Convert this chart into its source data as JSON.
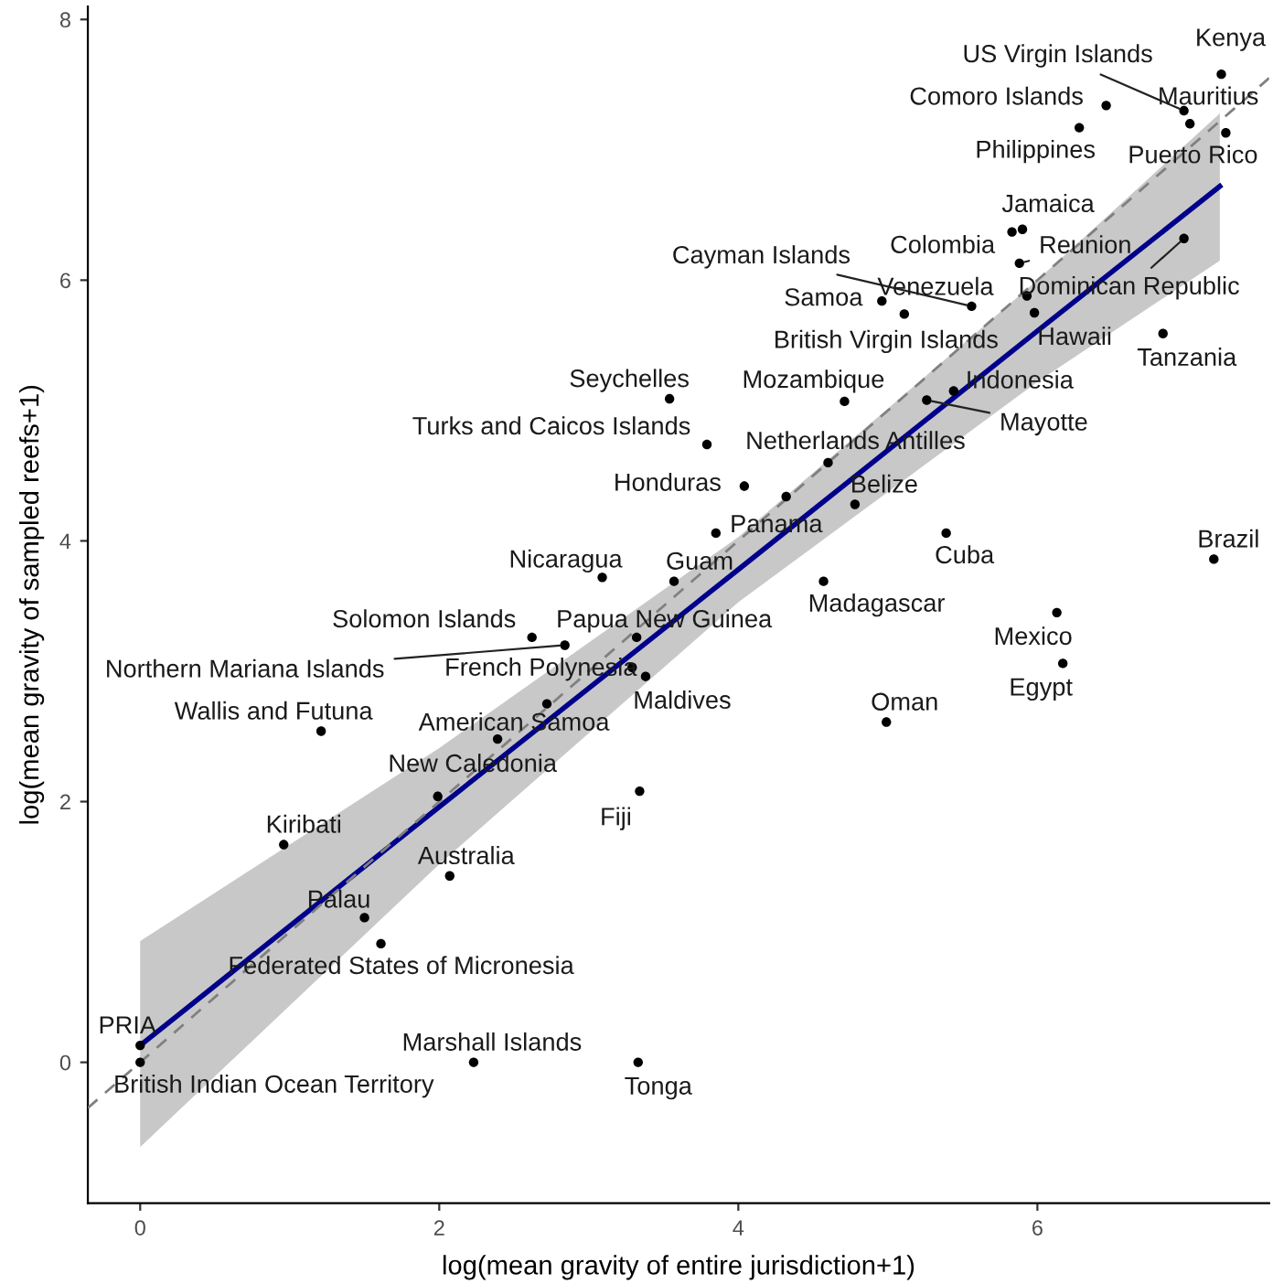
{
  "chart_data": {
    "type": "scatter",
    "xlabel": "log(mean gravity of entire jurisdiction+1)",
    "ylabel": "log(mean gravity of sampled reefs+1)",
    "xlim": [
      -0.35,
      7.55
    ],
    "ylim": [
      -1.08,
      8.1
    ],
    "xticks": [
      0,
      2,
      4,
      6
    ],
    "yticks": [
      0,
      2,
      4,
      6,
      8
    ],
    "grid": false,
    "legend": false,
    "series": [
      {
        "type": "scatter",
        "color": "#000000",
        "marker": "circle",
        "x": [
          7.23,
          6.98,
          7.02,
          7.26,
          6.46,
          6.28,
          5.9,
          5.83,
          5.88,
          6.98,
          5.56,
          5.93,
          4.96,
          5.11,
          5.98,
          6.84,
          3.54,
          4.71,
          5.44,
          5.26,
          3.79,
          4.6,
          4.04,
          4.78,
          3.85,
          3.57,
          3.09,
          5.39,
          4.57,
          7.18,
          6.13,
          6.17,
          4.99,
          2.62,
          3.32,
          2.84,
          3.29,
          3.38,
          2.72,
          1.21,
          1.99,
          3.34,
          0.96,
          2.07,
          1.5,
          1.61,
          0,
          0,
          2.23,
          3.33,
          4.32,
          2.39
        ],
        "values": [
          7.58,
          7.3,
          7.2,
          7.13,
          7.34,
          7.17,
          6.39,
          6.37,
          6.13,
          6.32,
          5.8,
          5.88,
          5.84,
          5.74,
          5.75,
          5.59,
          5.09,
          5.07,
          5.15,
          5.08,
          4.74,
          4.6,
          4.42,
          4.28,
          4.06,
          3.69,
          3.72,
          4.06,
          3.69,
          3.86,
          3.45,
          3.06,
          2.61,
          3.26,
          3.26,
          3.2,
          3.03,
          2.96,
          2.75,
          2.54,
          2.04,
          2.08,
          1.67,
          1.43,
          1.11,
          0.91,
          0.13,
          0,
          0,
          0,
          4.34,
          2.48
        ]
      },
      {
        "type": "line",
        "color": "#00008b",
        "marker": "none",
        "line_style": "solid",
        "x": [
          0,
          2,
          4,
          6,
          7.22
        ],
        "values": [
          0.13,
          1.96,
          3.78,
          5.61,
          6.72
        ],
        "lower": [
          -0.65,
          1.52,
          3.53,
          5.22,
          6.15
        ],
        "upper": [
          0.93,
          2.41,
          4.03,
          6.0,
          7.28
        ]
      },
      {
        "type": "line",
        "color": "#808080",
        "marker": "none",
        "line_style": "dashed",
        "x": [
          -0.35,
          7.55
        ],
        "values": [
          -0.35,
          7.55
        ]
      }
    ],
    "annotations": [
      {
        "text": "Kenya",
        "x": 7.23,
        "y": 7.58
      },
      {
        "text": "US Virgin Islands",
        "x": 6.98,
        "y": 7.3
      },
      {
        "text": "Mauritius",
        "x": 7.02,
        "y": 7.2
      },
      {
        "text": "Puerto Rico",
        "x": 7.26,
        "y": 7.13
      },
      {
        "text": "Comoro Islands",
        "x": 6.46,
        "y": 7.34
      },
      {
        "text": "Philippines",
        "x": 6.28,
        "y": 7.17
      },
      {
        "text": "Jamaica",
        "x": 5.9,
        "y": 6.39
      },
      {
        "text": "Colombia",
        "x": 5.83,
        "y": 6.37
      },
      {
        "text": "Reunion",
        "x": 5.88,
        "y": 6.13
      },
      {
        "text": "Dominican Republic",
        "x": 6.98,
        "y": 6.32
      },
      {
        "text": "Cayman Islands",
        "x": 5.56,
        "y": 5.8
      },
      {
        "text": "Venezuela",
        "x": 5.93,
        "y": 5.88
      },
      {
        "text": "Samoa",
        "x": 4.96,
        "y": 5.84
      },
      {
        "text": "British Virgin Islands",
        "x": 5.11,
        "y": 5.74
      },
      {
        "text": "Hawaii",
        "x": 5.98,
        "y": 5.75
      },
      {
        "text": "Tanzania",
        "x": 6.84,
        "y": 5.59
      },
      {
        "text": "Seychelles",
        "x": 3.54,
        "y": 5.09
      },
      {
        "text": "Mozambique",
        "x": 4.71,
        "y": 5.07
      },
      {
        "text": "Indonesia",
        "x": 5.44,
        "y": 5.15
      },
      {
        "text": "Mayotte",
        "x": 5.26,
        "y": 5.08
      },
      {
        "text": "Turks and Caicos Islands",
        "x": 3.79,
        "y": 4.74
      },
      {
        "text": "Netherlands Antilles",
        "x": 4.6,
        "y": 4.6
      },
      {
        "text": "Honduras",
        "x": 4.04,
        "y": 4.42
      },
      {
        "text": "Belize",
        "x": 4.78,
        "y": 4.28
      },
      {
        "text": "Panama",
        "x": 3.85,
        "y": 4.06
      },
      {
        "text": "Guam",
        "x": 3.57,
        "y": 3.69
      },
      {
        "text": "Nicaragua",
        "x": 3.09,
        "y": 3.72
      },
      {
        "text": "Cuba",
        "x": 5.39,
        "y": 4.06
      },
      {
        "text": "Madagascar",
        "x": 4.57,
        "y": 3.69
      },
      {
        "text": "Brazil",
        "x": 7.18,
        "y": 3.86
      },
      {
        "text": "Mexico",
        "x": 6.13,
        "y": 3.45
      },
      {
        "text": "Egypt",
        "x": 6.17,
        "y": 3.06
      },
      {
        "text": "Oman",
        "x": 4.99,
        "y": 2.61
      },
      {
        "text": "Solomon Islands",
        "x": 2.62,
        "y": 3.26
      },
      {
        "text": "Papua New Guinea",
        "x": 3.32,
        "y": 3.26
      },
      {
        "text": "Northern Mariana Islands",
        "x": 2.84,
        "y": 3.2
      },
      {
        "text": "French Polynesia",
        "x": 3.29,
        "y": 3.03
      },
      {
        "text": "Maldives",
        "x": 3.38,
        "y": 2.96
      },
      {
        "text": "American Samoa",
        "x": 2.72,
        "y": 2.75
      },
      {
        "text": "Wallis and Futuna",
        "x": 1.21,
        "y": 2.54
      },
      {
        "text": "New Caledonia",
        "x": 1.99,
        "y": 2.04
      },
      {
        "text": "Fiji",
        "x": 3.34,
        "y": 2.08
      },
      {
        "text": "Kiribati",
        "x": 0.96,
        "y": 1.67
      },
      {
        "text": "Australia",
        "x": 2.07,
        "y": 1.43
      },
      {
        "text": "Palau",
        "x": 1.5,
        "y": 1.11
      },
      {
        "text": "Federated States of Micronesia",
        "x": 1.61,
        "y": 0.91
      },
      {
        "text": "PRIA",
        "x": 0,
        "y": 0.13
      },
      {
        "text": "British Indian Ocean Territory",
        "x": 0,
        "y": 0
      },
      {
        "text": "Marshall Islands",
        "x": 2.23,
        "y": 0
      },
      {
        "text": "Tonga",
        "x": 3.33,
        "y": 0
      }
    ]
  }
}
